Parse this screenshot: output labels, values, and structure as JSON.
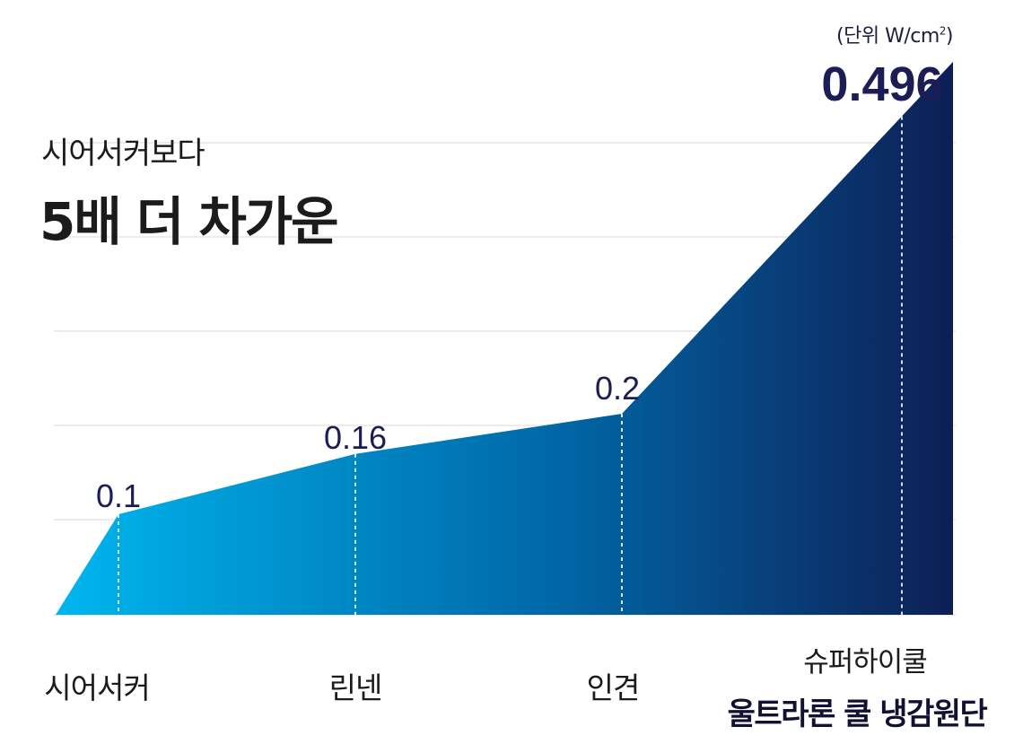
{
  "header": {
    "subtitle": "시어서커보다",
    "title": "5배 더 차가운",
    "unit_prefix": "(단위 W/cm",
    "unit_sup": "2",
    "unit_suffix": ")"
  },
  "chart_data": {
    "type": "area",
    "unit": "W/cm²",
    "categories": [
      "시어서커",
      "린넨",
      "인견",
      "슈퍼하이쿨 울트라론 쿨 냉감원단"
    ],
    "category_labels": [
      {
        "lines": [
          "시어서커"
        ]
      },
      {
        "lines": [
          "린넨"
        ]
      },
      {
        "lines": [
          "인견"
        ]
      },
      {
        "lines": [
          "슈퍼하이쿨",
          "울트라론 쿨 냉감원단"
        ]
      }
    ],
    "values": [
      0.1,
      0.16,
      0.2,
      0.496
    ],
    "value_labels": [
      "0.1",
      "0.16",
      "0.2",
      "0.496"
    ],
    "grid": true,
    "colors": {
      "gradient_start": "#00b6ee",
      "gradient_mid": "#0068a8",
      "gradient_end": "#0d1f55",
      "value_text": "#1d1d55",
      "gridline": "#e6e6ea",
      "guide": "#ffffff"
    }
  }
}
